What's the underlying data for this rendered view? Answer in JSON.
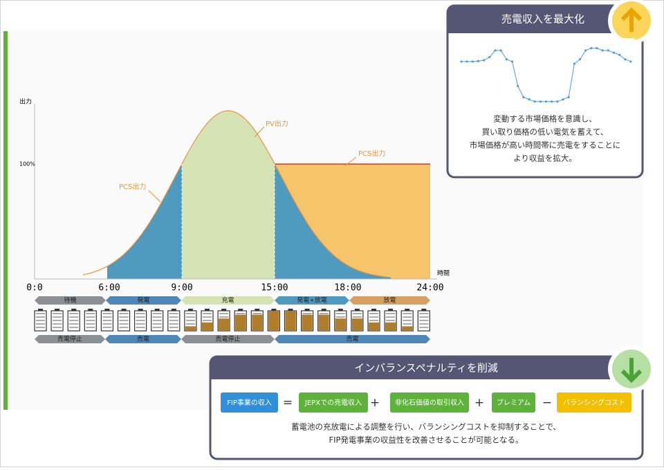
{
  "main_chart": {
    "y_label": "出力",
    "y_tick": "100%",
    "x_label": "時間",
    "x_ticks": [
      "0:0",
      "6:00",
      "9:00",
      "15:00",
      "18:00",
      "24:00"
    ],
    "annotations": {
      "pcs_left": "PCS出力",
      "pv": "PV出力",
      "pcs_right": "PCS出力"
    },
    "phases": [
      "待機",
      "発電",
      "充電",
      "発電+放電",
      "放電"
    ],
    "battery_levels": [
      0,
      0,
      0,
      0,
      0,
      0,
      0,
      0,
      0,
      1,
      2,
      3,
      4,
      4,
      5,
      5,
      4,
      4,
      3,
      3,
      2,
      2,
      1,
      0
    ],
    "modes": [
      "売電停止",
      "売電",
      "売電停止",
      "売電"
    ]
  },
  "top_card": {
    "title": "売電収入を最大化",
    "mini_chart": {
      "values": [
        9.5,
        9.5,
        9.5,
        9.6,
        9.8,
        10.5,
        12,
        12,
        10,
        9.5,
        4,
        1.5,
        1,
        0.5,
        0.5,
        0.5,
        0.5,
        0.5,
        1,
        1.5,
        9,
        10,
        12,
        12.5,
        12.5,
        12,
        12,
        11.5,
        11,
        10,
        9.5
      ],
      "ylim": [
        0,
        14
      ]
    },
    "text": [
      "変動する市場価格を意識し、",
      "買い取り価格の低い電気を蓄えて、",
      "市場価格が高い時間帯に売電をすることに",
      "より収益を拡大。"
    ]
  },
  "bottom_card": {
    "title": "インバランスペナルティを削減",
    "formula": [
      "FIP事業の収入",
      "=",
      "JEPXでの売電収入",
      "+",
      "非化石価値の取引収入",
      "+",
      "プレミアム",
      "−",
      "バランシングコスト"
    ],
    "text": [
      "蓄電池の充放電による調整を行い、バランシングコストを抑制することで、",
      "FIP発電事業の収益性を改善させることが可能となる。"
    ]
  }
}
